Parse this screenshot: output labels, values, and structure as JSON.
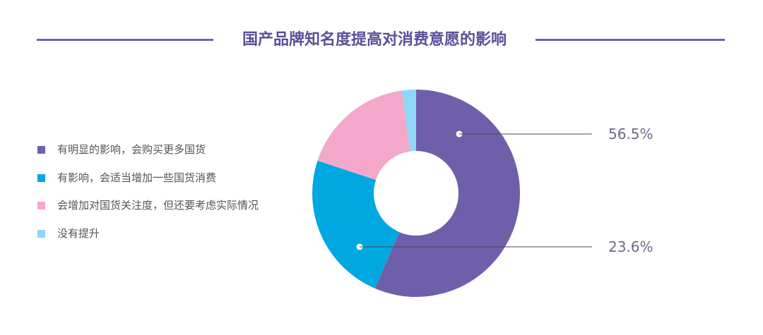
{
  "chart_data": {
    "type": "pie",
    "title": "国产品牌知名度提高对消费意愿的影响",
    "series": [
      {
        "name": "有明显的影响，会购买更多国货",
        "value": 56.5,
        "color": "#6f5fab",
        "label": "56.5%"
      },
      {
        "name": "有影响，会适当增加一些国货消费",
        "value": 23.6,
        "color": "#00a8e2",
        "label": "23.6%"
      },
      {
        "name": "会增加对国货关注度，但还要考虑实际情况",
        "value": 17.7,
        "color": "#f3a8cb",
        "label": ""
      },
      {
        "name": "没有提升",
        "value": 2.2,
        "color": "#8ed8f5",
        "label": ""
      }
    ],
    "legend": "left"
  }
}
